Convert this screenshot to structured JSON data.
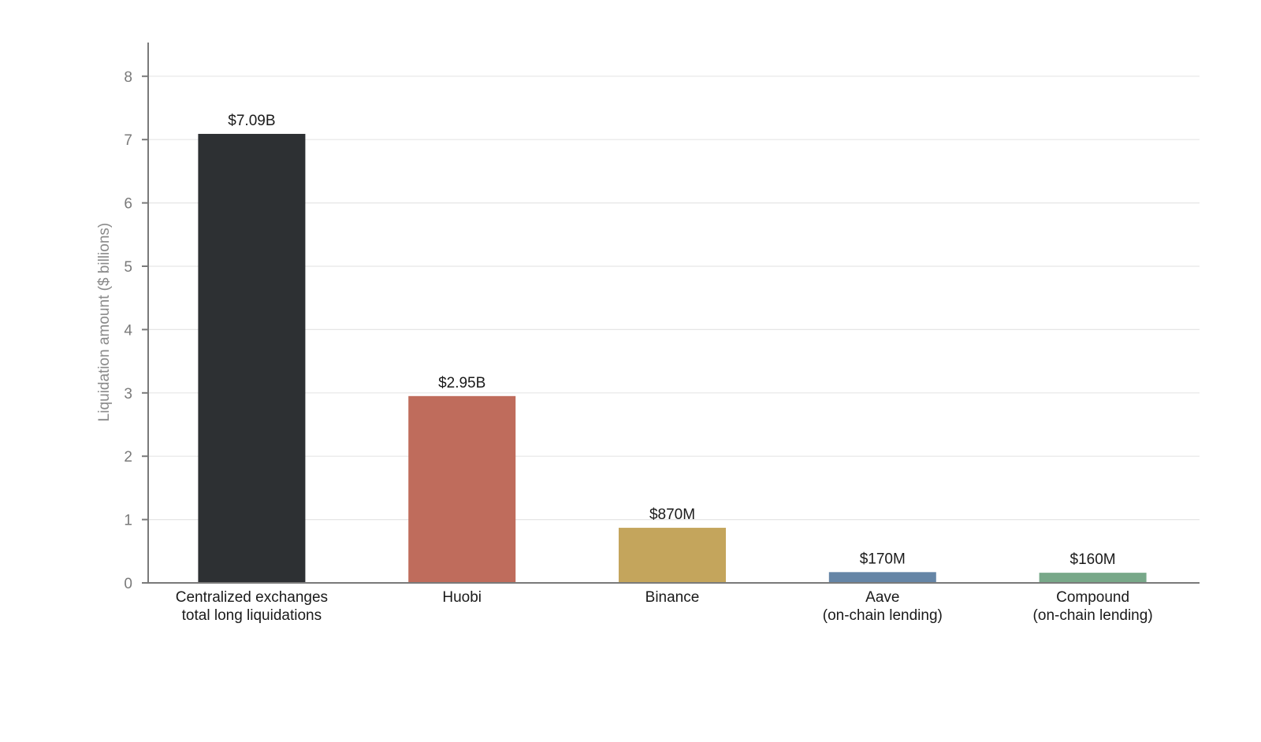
{
  "chart_data": {
    "type": "bar",
    "title": "",
    "xlabel": "",
    "ylabel": "Liquidation amount ($ billions)",
    "ylim": [
      0,
      8.5
    ],
    "yticks": [
      "0",
      "1",
      "2",
      "3",
      "4",
      "5",
      "6",
      "7",
      "8"
    ],
    "grid": true,
    "categories": [
      [
        "Centralized exchanges",
        "total long liquidations"
      ],
      [
        "Huobi"
      ],
      [
        "Binance"
      ],
      [
        "Aave",
        "(on-chain lending)"
      ],
      [
        "Compound",
        "(on-chain lending)"
      ]
    ],
    "values": [
      7.09,
      2.95,
      0.87,
      0.17,
      0.16
    ],
    "data_labels": [
      "$7.09B",
      "$2.95B",
      "$870M",
      "$170M",
      "$160M"
    ],
    "colors": [
      "#2d3033",
      "#bf6c5c",
      "#c4a55c",
      "#6585a6",
      "#78a889"
    ]
  }
}
